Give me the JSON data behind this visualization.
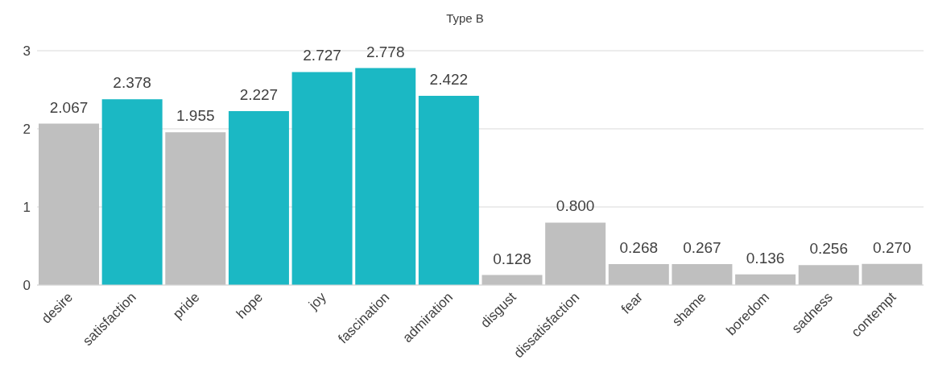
{
  "chart_data": {
    "type": "bar",
    "title": "Type B",
    "categories": [
      "desire",
      "satisfaction",
      "pride",
      "hope",
      "joy",
      "fascination",
      "admiration",
      "disgust",
      "dissatisfaction",
      "fear",
      "shame",
      "boredom",
      "sadness",
      "contempt"
    ],
    "values": [
      2.067,
      2.378,
      1.955,
      2.227,
      2.727,
      2.778,
      2.422,
      0.128,
      0.8,
      0.268,
      0.267,
      0.136,
      0.256,
      0.27
    ],
    "value_labels": [
      "2.067",
      "2.378",
      "1.955",
      "2.227",
      "2.727",
      "2.778",
      "2.422",
      "0.128",
      "0.800",
      "0.268",
      "0.267",
      "0.136",
      "0.256",
      "0.270"
    ],
    "colors": [
      "#bfbfbf",
      "#1bb8c4",
      "#bfbfbf",
      "#1bb8c4",
      "#1bb8c4",
      "#1bb8c4",
      "#1bb8c4",
      "#bfbfbf",
      "#bfbfbf",
      "#bfbfbf",
      "#bfbfbf",
      "#bfbfbf",
      "#bfbfbf",
      "#bfbfbf"
    ],
    "ylim": [
      0,
      3
    ],
    "yticks": [
      0,
      1,
      2,
      3
    ],
    "grid": "y"
  }
}
